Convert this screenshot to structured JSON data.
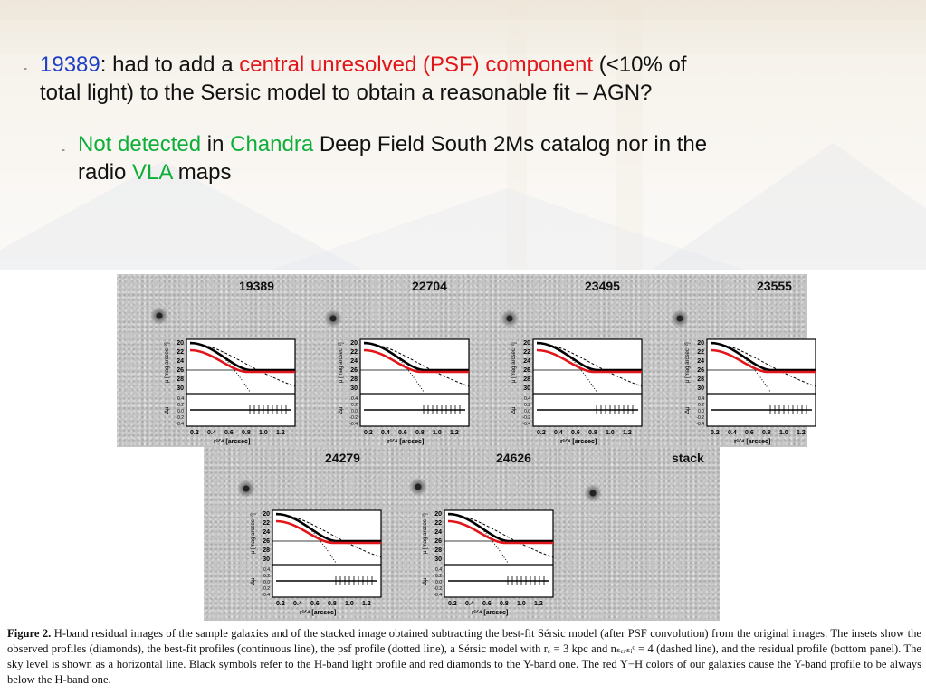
{
  "bullets": {
    "b1_id": "19389",
    "b1_text1": ": had to add a ",
    "b1_red": "central unresolved (PSF) component",
    "b1_text2": " (<10% of",
    "b1_line2": "total light) to the Sersic model to obtain a reasonable fit – AGN?",
    "b2_green1": "Not detected",
    "b2_text1": " in ",
    "b2_green2": "Chandra",
    "b2_text2": " Deep Field South 2Ms catalog nor in the",
    "b2_line2a": "radio ",
    "b2_green3": "VLA",
    "b2_line2b": " maps",
    "dash": "-"
  },
  "figure": {
    "panels": [
      {
        "label": "19389"
      },
      {
        "label": "22704"
      },
      {
        "label": "23495"
      },
      {
        "label": "23555"
      },
      {
        "label": "24279"
      },
      {
        "label": "24626"
      },
      {
        "label": "stack"
      }
    ],
    "inset": {
      "ylabel": "μ [mag arcsec⁻²]",
      "resid_label": "Δμ",
      "xlabel": "r¹ᐟ⁴ [arcsec]",
      "yticks": [
        "20",
        "22",
        "24",
        "26",
        "28",
        "30"
      ],
      "rticks": [
        "0.4",
        "0.2",
        "0.0",
        "-0.2",
        "-0.4"
      ],
      "xticks": [
        "0.2",
        "0.4",
        "0.6",
        "0.8",
        "1.0",
        "1.2"
      ]
    }
  },
  "caption": {
    "label": "Figure 2.",
    "text": " H-band residual images of the sample galaxies and of the stacked image obtained subtracting the best-fit Sérsic model (after PSF convolution) from the original images. The insets show the observed profiles (diamonds), the best-fit profiles (continuous line), the psf profile (dotted line), a Sérsic model with rₑ = 3 kpc and nₛₑᵣₛᵢᶜ = 4 (dashed line), and the residual profile (bottom panel). The sky level is shown as a horizontal line. Black symbols refer to the H-band light profile and red diamonds to the Y-band one. The red Y−H colors of our galaxies cause the Y-band profile to be always below the H-band one."
  },
  "colors": {
    "blue": "#1f3fc4",
    "red": "#e0161a",
    "green": "#0fae3a"
  }
}
